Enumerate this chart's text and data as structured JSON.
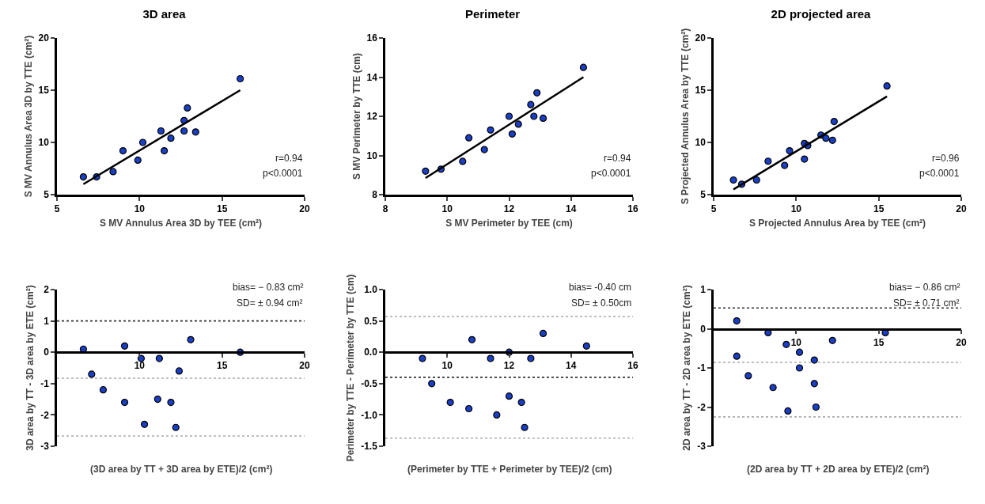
{
  "chart_data": [
    {
      "type": "scatter",
      "title": "3D area",
      "xlabel": "S MV Annulus Area 3D by TEE (cm²)",
      "ylabel": "S MV Annulus Area 3D by TTE (cm²)",
      "x": [
        6.6,
        7.4,
        8.4,
        9.0,
        9.9,
        10.2,
        11.3,
        11.5,
        11.9,
        12.7,
        12.7,
        12.9,
        13.4,
        16.1
      ],
      "xlim": [
        5,
        20
      ],
      "xticks": [
        5,
        10,
        15,
        20
      ],
      "ylim": [
        5,
        20
      ],
      "yticks": [
        5,
        10,
        15,
        20
      ],
      "annotations": [
        "r=0.94",
        "p<0.0001"
      ],
      "series": [
        {
          "marker": "circle",
          "color": "#1a3fc4",
          "values": [
            6.7,
            6.7,
            7.2,
            9.2,
            8.3,
            10.0,
            11.1,
            9.2,
            10.4,
            12.1,
            11.1,
            13.3,
            11.0,
            16.1
          ]
        },
        {
          "type": "line",
          "marker": "none",
          "color": "#000000",
          "x": [
            6.6,
            16.1
          ],
          "values": [
            6.0,
            15.0
          ]
        }
      ]
    },
    {
      "type": "scatter",
      "title": "Perimeter",
      "xlabel": "S MV Perimeter by TEE (cm)",
      "ylabel": "S MV Perimeter by TTE (cm)",
      "x": [
        9.3,
        9.8,
        10.5,
        10.7,
        11.2,
        11.4,
        12.0,
        12.1,
        12.3,
        12.7,
        12.8,
        12.9,
        13.1,
        14.4
      ],
      "xlim": [
        8,
        16
      ],
      "xticks": [
        8,
        10,
        12,
        14,
        16
      ],
      "ylim": [
        8,
        16
      ],
      "yticks": [
        8,
        10,
        12,
        14,
        16
      ],
      "annotations": [
        "r=0.94",
        "p<0.0001"
      ],
      "series": [
        {
          "marker": "circle",
          "color": "#1a3fc4",
          "values": [
            9.2,
            9.3,
            9.7,
            10.9,
            10.3,
            11.3,
            12.0,
            11.1,
            11.6,
            12.6,
            12.0,
            13.2,
            11.9,
            14.5
          ]
        },
        {
          "type": "line",
          "marker": "none",
          "color": "#000000",
          "x": [
            9.3,
            14.4
          ],
          "values": [
            8.85,
            14.0
          ]
        }
      ]
    },
    {
      "type": "scatter",
      "title": "2D projected area",
      "xlabel": "S Projected Annulus Area by TEE (cm²)",
      "ylabel": "S Projected Annulus Area by TTE (cm²)",
      "x": [
        6.2,
        6.7,
        7.6,
        8.3,
        9.3,
        9.6,
        10.5,
        10.5,
        10.7,
        11.5,
        11.8,
        12.2,
        12.3,
        15.5
      ],
      "xlim": [
        5,
        20
      ],
      "xticks": [
        5,
        10,
        15,
        20
      ],
      "ylim": [
        5,
        20
      ],
      "yticks": [
        5,
        10,
        15,
        20
      ],
      "annotations": [
        "r=0.96",
        "p<0.0001"
      ],
      "series": [
        {
          "marker": "circle",
          "color": "#1a3fc4",
          "values": [
            6.4,
            6.0,
            6.4,
            8.2,
            7.8,
            9.2,
            9.9,
            8.4,
            9.7,
            10.7,
            10.4,
            10.2,
            12.0,
            15.4
          ]
        },
        {
          "type": "line",
          "marker": "none",
          "color": "#000000",
          "x": [
            6.2,
            15.5
          ],
          "values": [
            5.5,
            14.4
          ]
        }
      ]
    },
    {
      "type": "scatter",
      "xlabel": "(3D area by TT + 3D area by ETE)/2 (cm²)",
      "ylabel": "3D area by TT - 3D area by ETE (cm²)",
      "x": [
        6.6,
        7.1,
        7.8,
        9.1,
        9.1,
        10.1,
        10.3,
        11.2,
        11.1,
        11.9,
        12.2,
        12.4,
        13.1,
        16.1
      ],
      "xlim": [
        5,
        20
      ],
      "xticks": [
        10,
        15,
        20
      ],
      "ylim": [
        -3,
        2
      ],
      "yticks": [
        -3,
        -2,
        -1,
        0,
        1,
        2
      ],
      "marker": "circle",
      "annotations": [
        "bias= − 0.83 cm²",
        "SD= ± 0.94 cm²"
      ],
      "series": [
        {
          "color": "#1a3fc4",
          "values": [
            0.1,
            -0.7,
            -1.2,
            0.2,
            -1.6,
            -0.2,
            -2.3,
            -0.2,
            -1.5,
            -1.6,
            -2.4,
            -0.6,
            0.4,
            0.0
          ]
        }
      ],
      "ref_lines": [
        {
          "axis": "y",
          "value": 1,
          "color": "#333333",
          "line_style": "dotted"
        },
        {
          "axis": "y",
          "value": -0.83,
          "color": "#aaaaaa",
          "line_style": "dotted"
        },
        {
          "axis": "y",
          "value": -2.67,
          "color": "#aaaaaa",
          "line_style": "dotted"
        }
      ]
    },
    {
      "type": "scatter",
      "xlabel": "(Perimeter by TTE + Perimeter by TEE)/2 (cm)",
      "ylabel": "Perimeter by TTE - Perimeter by TTE (cm)",
      "x": [
        9.2,
        9.5,
        10.1,
        10.7,
        10.8,
        11.4,
        11.6,
        12.0,
        12.0,
        12.4,
        12.5,
        12.7,
        13.1,
        14.5
      ],
      "xlim": [
        8,
        16
      ],
      "xticks": [
        10,
        12,
        14,
        16
      ],
      "ylim": [
        -1.5,
        1.0
      ],
      "yticks": [
        {
          "value": -1.5,
          "label": "-1.5"
        },
        {
          "value": -1.0,
          "label": "-1.0"
        },
        {
          "value": -0.5,
          "label": "-0.5"
        },
        {
          "value": 0,
          "label": "0.0"
        },
        {
          "value": 0.5,
          "label": "0.5"
        },
        {
          "value": 1.0,
          "label": "1.0"
        }
      ],
      "marker": "circle",
      "annotations": [
        "bias= -0.40 cm",
        "SD= ± 0.50cm"
      ],
      "series": [
        {
          "color": "#1a3fc4",
          "values": [
            -0.1,
            -0.5,
            -0.8,
            -0.9,
            0.2,
            -0.1,
            -1.0,
            -0.7,
            0.0,
            -0.8,
            -1.2,
            -0.1,
            0.3,
            0.1
          ]
        }
      ],
      "ref_lines": [
        {
          "axis": "y",
          "value": 0.57,
          "color": "#aaaaaa",
          "line_style": "dotted"
        },
        {
          "axis": "y",
          "value": -0.4,
          "color": "#333333",
          "line_style": "dotted"
        },
        {
          "axis": "y",
          "value": -1.37,
          "color": "#aaaaaa",
          "line_style": "dotted"
        }
      ]
    },
    {
      "type": "scatter",
      "xlabel": "(2D area by TT + 2D area by ETE)/2 (cm²)",
      "ylabel": "2D area by TT - 2D area by ETE (cm²)",
      "x": [
        6.4,
        6.4,
        7.1,
        8.3,
        8.6,
        9.4,
        9.5,
        10.2,
        10.2,
        11.1,
        11.1,
        11.2,
        12.2,
        15.4
      ],
      "xlim": [
        5,
        20
      ],
      "xticks": [
        10,
        15,
        20
      ],
      "ylim": [
        -3,
        1
      ],
      "yticks": [
        -3,
        -2,
        -1,
        0,
        1
      ],
      "marker": "circle",
      "annotations": [
        "bias= − 0.86 cm²",
        "SD= ± 0.71 cm²"
      ],
      "series": [
        {
          "color": "#1a3fc4",
          "values": [
            0.2,
            -0.7,
            -1.2,
            -0.1,
            -1.5,
            -0.4,
            -2.1,
            -0.6,
            -1.0,
            -0.8,
            -1.4,
            -2.0,
            -0.3,
            -0.1
          ]
        }
      ],
      "ref_lines": [
        {
          "axis": "y",
          "value": 0.53,
          "color": "#333333",
          "line_style": "dotted"
        },
        {
          "axis": "y",
          "value": -0.86,
          "color": "#aaaaaa",
          "line_style": "dotted"
        },
        {
          "axis": "y",
          "value": -2.25,
          "color": "#aaaaaa",
          "line_style": "dotted"
        }
      ]
    }
  ]
}
